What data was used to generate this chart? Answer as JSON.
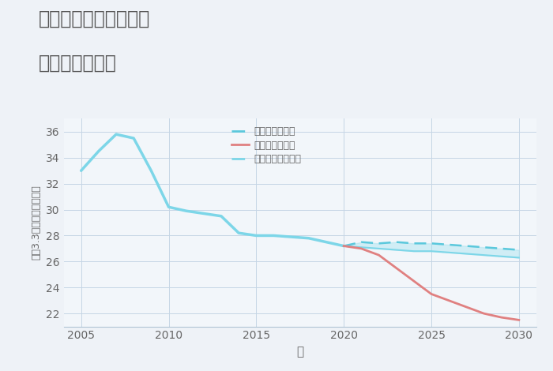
{
  "title_line1": "岐阜県大垣市直江町の",
  "title_line2": "土地の価格推移",
  "xlabel": "年",
  "ylabel": "坪（3.3㎡）単価（万円）",
  "bg_color": "#eef2f7",
  "plot_bg_color": "#f2f6fa",
  "grid_color": "#c5d5e5",
  "historical_years": [
    2005,
    2006,
    2007,
    2008,
    2009,
    2010,
    2011,
    2012,
    2013,
    2014,
    2015,
    2016,
    2017,
    2018,
    2019,
    2020
  ],
  "historical_values": [
    33.0,
    34.5,
    35.8,
    35.5,
    33.0,
    30.2,
    29.9,
    29.7,
    29.5,
    28.2,
    28.0,
    28.0,
    27.9,
    27.8,
    27.5,
    27.2
  ],
  "future_years": [
    2020,
    2021,
    2022,
    2023,
    2024,
    2025,
    2026,
    2027,
    2028,
    2029,
    2030
  ],
  "good_values": [
    27.2,
    27.5,
    27.4,
    27.5,
    27.4,
    27.4,
    27.3,
    27.2,
    27.1,
    27.0,
    26.9
  ],
  "normal_values": [
    27.2,
    27.1,
    27.0,
    26.9,
    26.8,
    26.8,
    26.7,
    26.6,
    26.5,
    26.4,
    26.3
  ],
  "bad_values": [
    27.2,
    27.0,
    26.5,
    25.5,
    24.5,
    23.5,
    23.0,
    22.5,
    22.0,
    21.7,
    21.5
  ],
  "good_color": "#5bc8dc",
  "normal_color": "#7dd6e8",
  "bad_color": "#e08080",
  "hist_color": "#7dd6e8",
  "fill_color": "#9de0ee",
  "fill_alpha": 0.4,
  "ylim": [
    21,
    37
  ],
  "xlim": [
    2004.0,
    2031.0
  ],
  "yticks": [
    22,
    24,
    26,
    28,
    30,
    32,
    34,
    36
  ],
  "xticks": [
    2005,
    2010,
    2015,
    2020,
    2025,
    2030
  ],
  "legend_labels": [
    "グッドシナリオ",
    "バッドシナリオ",
    "ノーマルシナリオ"
  ]
}
